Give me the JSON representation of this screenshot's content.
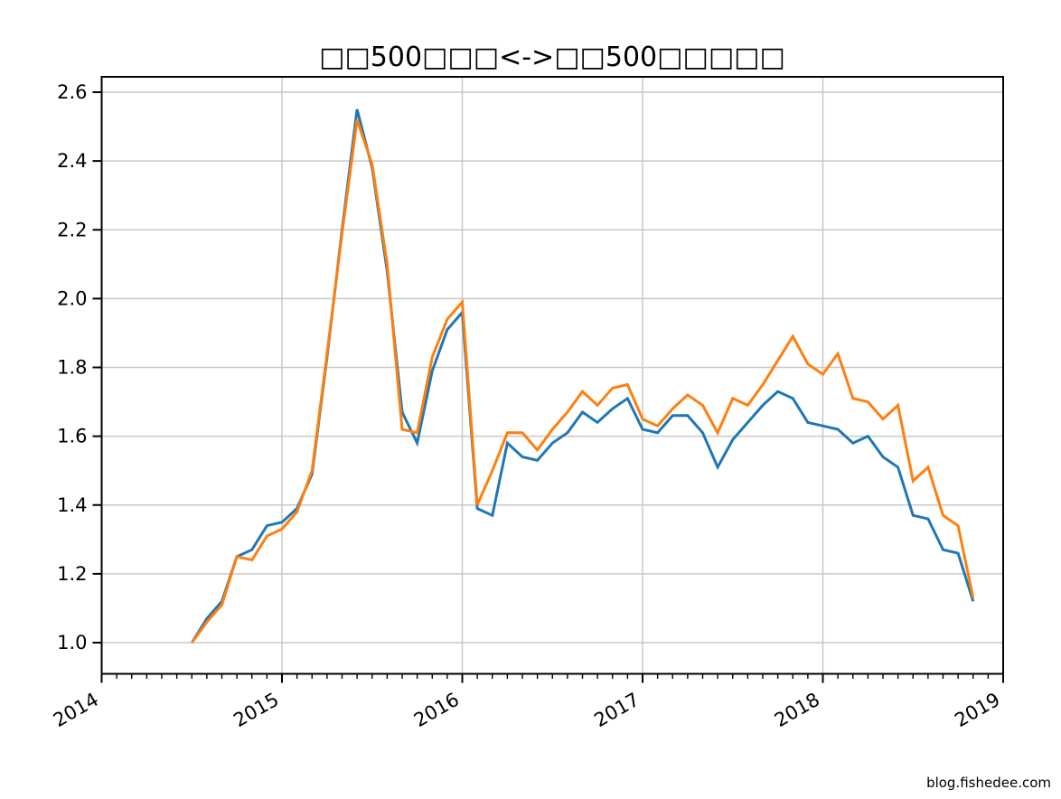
{
  "title": "□□500□□□<->□□500□□□□□",
  "watermark": "blog.fishedee.com",
  "colors": {
    "background": "#ffffff",
    "axis": "#000000",
    "grid": "#c8c8c8",
    "series_blue": "#1f77b4",
    "series_orange": "#ff7f0e",
    "watermark": "#ff0000"
  },
  "chart_data": {
    "type": "line",
    "title": "□□500□□□<->□□500□□□□□",
    "xlabel": "",
    "ylabel": "",
    "grid": true,
    "legend_position": "none",
    "xlim_months": [
      "2014-01",
      "2019-01"
    ],
    "ylim": [
      0.92,
      2.64
    ],
    "x_tick_labels": [
      "2014",
      "2015",
      "2016",
      "2017",
      "2018",
      "2019"
    ],
    "y_tick_labels": [
      "1.0",
      "1.2",
      "1.4",
      "1.6",
      "1.8",
      "2.0",
      "2.2",
      "2.4",
      "2.6"
    ],
    "x_minor_tick_interval_months": 1,
    "x": [
      "2014-07",
      "2014-08",
      "2014-09",
      "2014-10",
      "2014-11",
      "2014-12",
      "2015-01",
      "2015-02",
      "2015-03",
      "2015-04",
      "2015-05",
      "2015-06",
      "2015-07",
      "2015-08",
      "2015-09",
      "2015-10",
      "2015-11",
      "2015-12",
      "2016-01",
      "2016-02",
      "2016-03",
      "2016-04",
      "2016-05",
      "2016-06",
      "2016-07",
      "2016-08",
      "2016-09",
      "2016-10",
      "2016-11",
      "2016-12",
      "2017-01",
      "2017-02",
      "2017-03",
      "2017-04",
      "2017-05",
      "2017-06",
      "2017-07",
      "2017-08",
      "2017-09",
      "2017-10",
      "2017-11",
      "2017-12",
      "2018-01",
      "2018-02",
      "2018-03",
      "2018-04",
      "2018-05",
      "2018-06",
      "2018-07",
      "2018-08",
      "2018-09",
      "2018-10",
      "2018-11"
    ],
    "series": [
      {
        "name": "blue-line",
        "color": "#1f77b4",
        "values": [
          1.0,
          1.07,
          1.12,
          1.25,
          1.27,
          1.34,
          1.35,
          1.39,
          1.49,
          1.83,
          2.2,
          2.55,
          2.38,
          2.08,
          1.67,
          1.58,
          1.79,
          1.91,
          1.96,
          1.39,
          1.37,
          1.58,
          1.54,
          1.53,
          1.58,
          1.61,
          1.67,
          1.64,
          1.68,
          1.71,
          1.62,
          1.61,
          1.66,
          1.66,
          1.61,
          1.51,
          1.59,
          1.64,
          1.69,
          1.73,
          1.71,
          1.64,
          1.63,
          1.62,
          1.58,
          1.6,
          1.54,
          1.51,
          1.37,
          1.36,
          1.27,
          1.26,
          1.12
        ]
      },
      {
        "name": "orange-line",
        "color": "#ff7f0e",
        "values": [
          1.0,
          1.06,
          1.11,
          1.25,
          1.24,
          1.31,
          1.33,
          1.38,
          1.5,
          1.84,
          2.19,
          2.52,
          2.39,
          2.1,
          1.62,
          1.61,
          1.83,
          1.94,
          1.99,
          1.4,
          1.5,
          1.61,
          1.61,
          1.56,
          1.62,
          1.67,
          1.73,
          1.69,
          1.74,
          1.75,
          1.65,
          1.63,
          1.68,
          1.72,
          1.69,
          1.61,
          1.71,
          1.69,
          1.75,
          1.82,
          1.89,
          1.81,
          1.78,
          1.84,
          1.71,
          1.7,
          1.65,
          1.69,
          1.47,
          1.51,
          1.37,
          1.34,
          1.13
        ]
      }
    ]
  }
}
